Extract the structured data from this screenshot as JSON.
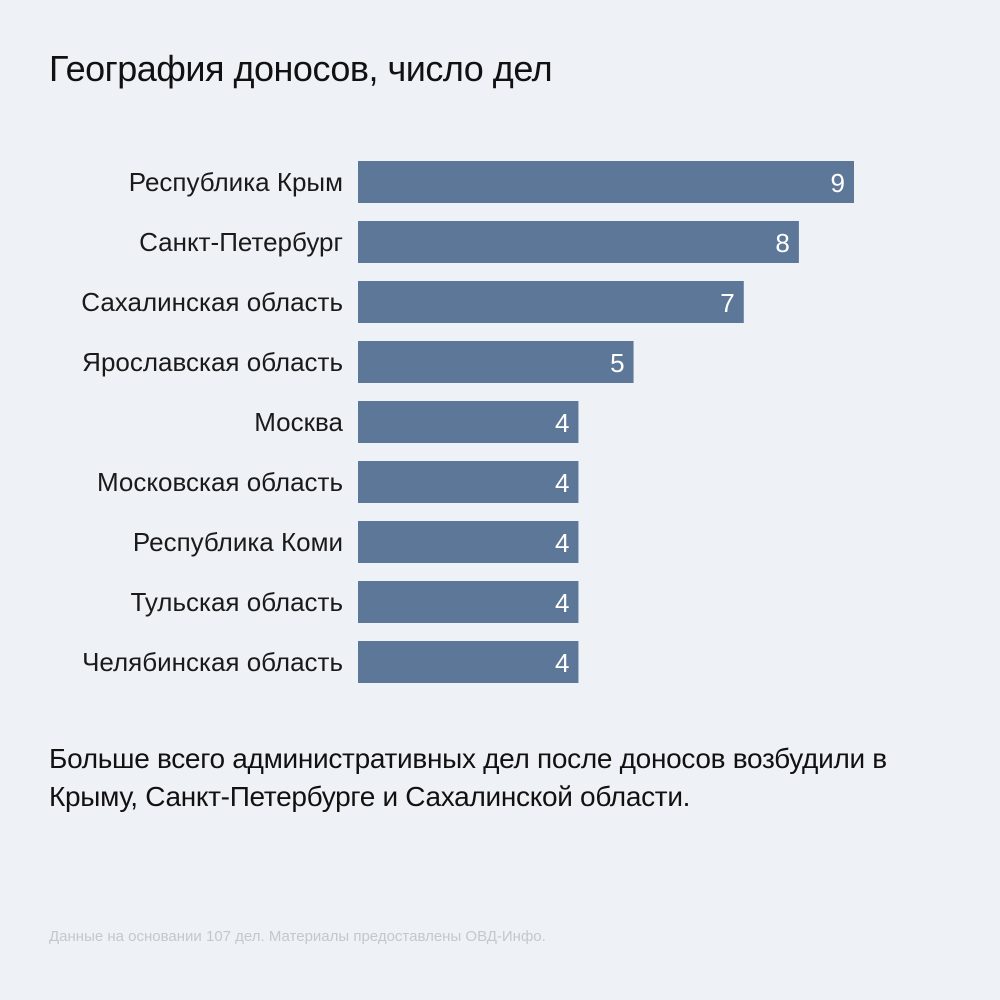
{
  "header": {
    "title": "География доносов, число дел"
  },
  "chart_data": {
    "type": "bar",
    "orientation": "horizontal",
    "title": "География доносов, число дел",
    "xlabel": "",
    "ylabel": "",
    "categories": [
      "Республика Крым",
      "Санкт-Петербург",
      "Сахалинская область",
      "Ярославская область",
      "Москва",
      "Московская область",
      "Республика Коми",
      "Тульская область",
      "Челябинская область"
    ],
    "values": [
      9,
      8,
      7,
      5,
      4,
      4,
      4,
      4,
      4
    ],
    "xlim": [
      0,
      9
    ],
    "grid": false,
    "legend": "none",
    "data_labels": true,
    "bar_color": "#5d7799"
  },
  "summary": {
    "text": "Больше всего административных дел после доносов возбудили в Крыму, Санкт-Петербурге и Сахалинской области."
  },
  "footnote": {
    "text": "Данные на основании 107 дел. Материалы предоставлены ОВД-Инфо."
  },
  "colors": {
    "background": "#eef2f6",
    "bar": "#5d7799",
    "text": "#111111",
    "footnote": "#c4c8cd"
  }
}
